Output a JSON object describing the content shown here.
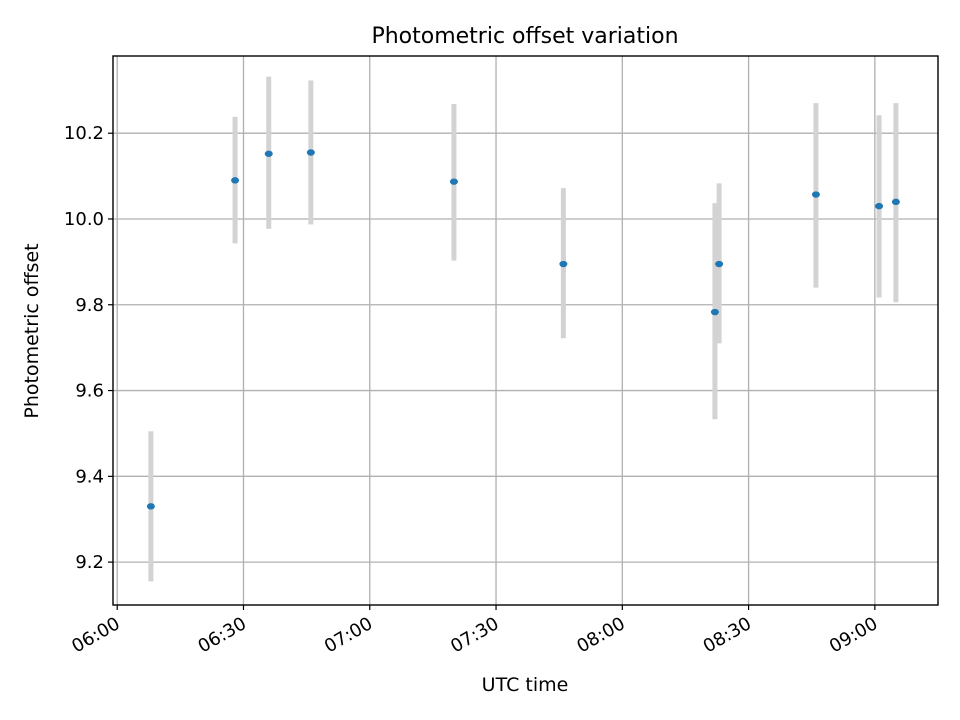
{
  "chart_data": {
    "type": "scatter",
    "title": "Photometric offset variation",
    "xlabel": "UTC time",
    "ylabel": "Photometric offset",
    "grid": true,
    "x_ticks": [
      "06:00",
      "06:30",
      "07:00",
      "07:30",
      "08:00",
      "08:30",
      "09:00"
    ],
    "y_ticks": [
      "9.2",
      "9.4",
      "9.6",
      "9.8",
      "10.0",
      "10.2"
    ],
    "xlim": [
      "05:59",
      "09:15"
    ],
    "ylim": [
      9.1,
      10.38
    ],
    "error_bar_color": "#d3d3d3",
    "marker_color": "#1f77b4",
    "points": [
      {
        "x": "06:08",
        "y": 9.33,
        "yerr_low": 9.155,
        "yerr_high": 9.505
      },
      {
        "x": "06:28",
        "y": 10.09,
        "yerr_low": 9.943,
        "yerr_high": 10.238
      },
      {
        "x": "06:36",
        "y": 10.152,
        "yerr_low": 9.977,
        "yerr_high": 10.332
      },
      {
        "x": "06:46",
        "y": 10.155,
        "yerr_low": 9.987,
        "yerr_high": 10.323
      },
      {
        "x": "07:20",
        "y": 10.087,
        "yerr_low": 9.903,
        "yerr_high": 10.268
      },
      {
        "x": "07:46",
        "y": 9.895,
        "yerr_low": 9.722,
        "yerr_high": 10.072
      },
      {
        "x": "08:22",
        "y": 9.783,
        "yerr_low": 9.533,
        "yerr_high": 10.037
      },
      {
        "x": "08:23",
        "y": 9.895,
        "yerr_low": 9.71,
        "yerr_high": 10.083
      },
      {
        "x": "08:46",
        "y": 10.057,
        "yerr_low": 9.84,
        "yerr_high": 10.27
      },
      {
        "x": "09:01",
        "y": 10.03,
        "yerr_low": 9.817,
        "yerr_high": 10.242
      },
      {
        "x": "09:05",
        "y": 10.04,
        "yerr_low": 9.806,
        "yerr_high": 10.27
      }
    ]
  }
}
